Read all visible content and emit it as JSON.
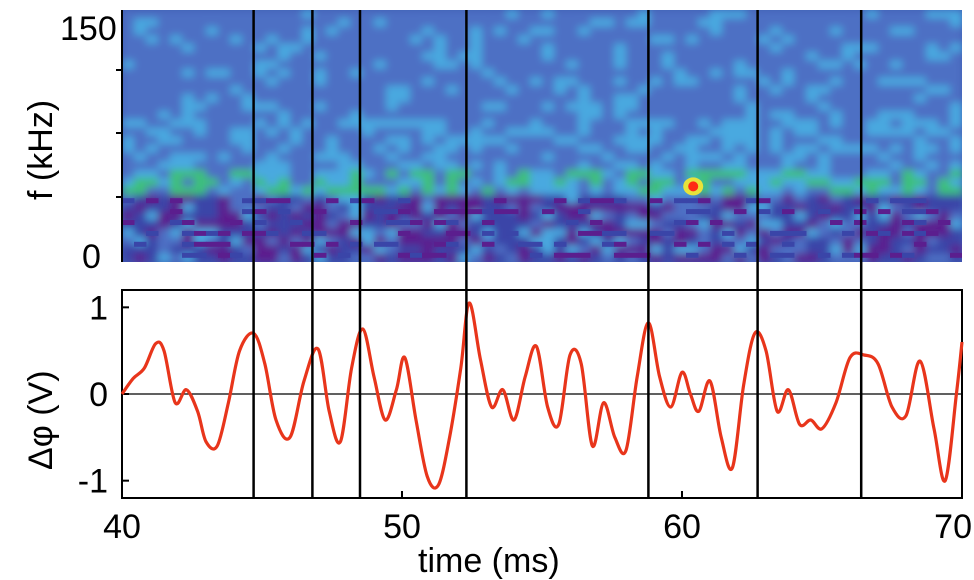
{
  "chart_data": [
    {
      "type": "heatmap",
      "title": "",
      "ylabel": "f (kHz)",
      "xlim": [
        40,
        70
      ],
      "ylim": [
        0,
        150
      ],
      "y_tick_labels": [
        "150",
        "0"
      ],
      "colormap": [
        "#5b1e8e",
        "#3a45a8",
        "#4d6fc4",
        "#48a9e0",
        "#3ec07a",
        "#e8e23a",
        "#ff2a14"
      ],
      "description_values": {
        "band_center_khz": 45,
        "hot_spot_time_ms": 60.4,
        "hot_spot_freq_khz": 45
      }
    },
    {
      "type": "line",
      "title": "",
      "xlabel": "time (ms)",
      "ylabel": "Δφ (V)",
      "xlim": [
        40,
        70
      ],
      "ylim": [
        -1.2,
        1.2
      ],
      "grid": false,
      "x_tick_labels": [
        "40",
        "50",
        "60",
        "70"
      ],
      "y_tick_labels": [
        "1",
        "0",
        "-1"
      ],
      "zero_line": true,
      "series_color": "#e8351b",
      "x": [
        40.0,
        40.4,
        40.8,
        41.2,
        41.5,
        41.9,
        42.3,
        42.7,
        43.0,
        43.4,
        43.8,
        44.2,
        44.7,
        45.1,
        45.5,
        46.0,
        46.5,
        47.0,
        47.4,
        47.8,
        48.2,
        48.6,
        49.0,
        49.4,
        49.8,
        50.1,
        50.5,
        50.9,
        51.3,
        51.7,
        52.1,
        52.4,
        52.8,
        53.2,
        53.6,
        54.0,
        54.4,
        54.8,
        55.2,
        55.6,
        56.0,
        56.4,
        56.8,
        57.2,
        57.6,
        58.0,
        58.4,
        58.8,
        59.2,
        59.6,
        60.0,
        60.3,
        60.6,
        61.0,
        61.4,
        61.8,
        62.2,
        62.6,
        63.0,
        63.4,
        63.8,
        64.2,
        64.6,
        65.0,
        65.5,
        66.0,
        66.5,
        67.0,
        67.5,
        68.0,
        68.5,
        69.0,
        69.4,
        69.8,
        70.0
      ],
      "y": [
        0.0,
        0.18,
        0.3,
        0.58,
        0.5,
        -0.1,
        0.05,
        -0.2,
        -0.55,
        -0.6,
        -0.1,
        0.5,
        0.7,
        0.35,
        -0.3,
        -0.5,
        0.15,
        0.52,
        -0.2,
        -0.55,
        0.3,
        0.75,
        0.2,
        -0.3,
        0.05,
        0.42,
        -0.3,
        -0.95,
        -1.05,
        -0.5,
        0.3,
        1.05,
        0.4,
        -0.15,
        0.05,
        -0.3,
        0.2,
        0.55,
        -0.15,
        -0.35,
        0.45,
        0.35,
        -0.6,
        -0.1,
        -0.5,
        -0.65,
        0.2,
        0.82,
        0.2,
        -0.15,
        0.25,
        0.0,
        -0.2,
        0.15,
        -0.5,
        -0.85,
        0.1,
        0.7,
        0.5,
        -0.2,
        0.05,
        -0.35,
        -0.3,
        -0.4,
        -0.1,
        0.42,
        0.45,
        0.35,
        -0.15,
        -0.25,
        0.38,
        -0.4,
        -1.0,
        0.0,
        0.6
      ]
    }
  ],
  "markers_ms": [
    44.7,
    46.8,
    48.5,
    52.3,
    58.8,
    62.7,
    66.4
  ],
  "colors": {
    "background": "#ffffff",
    "marker_line": "#000000",
    "line_series": "#e8351b",
    "heatmap_base": "#4060b8"
  }
}
